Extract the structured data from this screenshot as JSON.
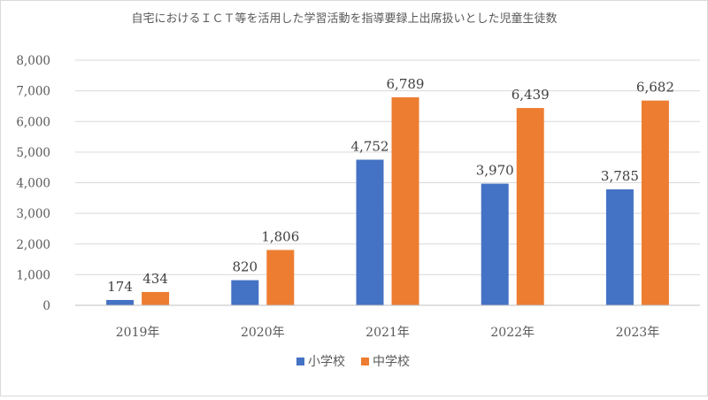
{
  "chart_data": {
    "type": "bar",
    "title": "自宅におけるＩＣＴ等を活用した学習活動を指導要録上出席扱いとした児童生徒数",
    "categories": [
      "2019年",
      "2020年",
      "2021年",
      "2022年",
      "2023年"
    ],
    "series": [
      {
        "name": "小学校",
        "color": "#4472c4",
        "values": [
          174,
          820,
          4752,
          3970,
          3785
        ],
        "labels": [
          "174",
          "820",
          "4,752",
          "3,970",
          "3,785"
        ]
      },
      {
        "name": "中学校",
        "color": "#ed7d31",
        "values": [
          434,
          1806,
          6789,
          6439,
          6682
        ],
        "labels": [
          "434",
          "1,806",
          "6,789",
          "6,439",
          "6,682"
        ]
      }
    ],
    "ylim": [
      0,
      8000
    ],
    "yticks": [
      "0",
      "1,000",
      "2,000",
      "3,000",
      "4,000",
      "5,000",
      "6,000",
      "7,000",
      "8,000"
    ],
    "ytick_values": [
      0,
      1000,
      2000,
      3000,
      4000,
      5000,
      6000,
      7000,
      8000
    ],
    "grid": true,
    "legend_position": "bottom",
    "xlabel": "",
    "ylabel": ""
  }
}
